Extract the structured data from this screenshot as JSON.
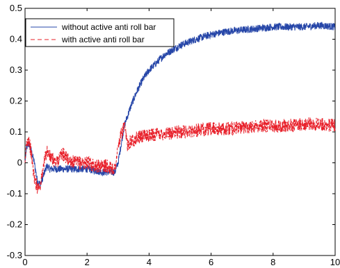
{
  "chart_data": {
    "type": "line",
    "title": "",
    "xlabel": "",
    "ylabel": "",
    "xlim": [
      0,
      10
    ],
    "ylim": [
      -0.3,
      0.5
    ],
    "xticks": [
      0,
      2,
      4,
      6,
      8,
      10
    ],
    "yticks": [
      -0.3,
      -0.2,
      -0.1,
      0,
      0.1,
      0.2,
      0.3,
      0.4,
      0.5
    ],
    "grid": false,
    "legend_position": "top-left",
    "series": [
      {
        "name": "without active anti roll bar",
        "color": "#2646a8",
        "line_style": "solid",
        "x": [
          0,
          0.05,
          0.12,
          0.2,
          0.3,
          0.4,
          0.5,
          0.6,
          0.7,
          0.8,
          1.0,
          1.2,
          1.5,
          2.0,
          2.5,
          2.9,
          3.0,
          3.1,
          3.2,
          3.4,
          3.6,
          3.8,
          4.0,
          4.5,
          5.0,
          5.5,
          6.0,
          6.5,
          7.0,
          7.5,
          8.0,
          8.5,
          9.0,
          9.5,
          10.0
        ],
        "values": [
          0.0,
          0.05,
          0.06,
          0.04,
          0.0,
          -0.06,
          -0.07,
          -0.04,
          -0.01,
          -0.02,
          -0.02,
          -0.02,
          -0.02,
          -0.02,
          -0.03,
          -0.03,
          0.0,
          0.06,
          0.12,
          0.18,
          0.23,
          0.27,
          0.3,
          0.35,
          0.38,
          0.4,
          0.415,
          0.425,
          0.43,
          0.435,
          0.44,
          0.44,
          0.44,
          0.445,
          0.44
        ],
        "noise": 0.012
      },
      {
        "name": "with active anti roll bar",
        "color": "#e8202a",
        "line_style": "dashed",
        "x": [
          0,
          0.05,
          0.12,
          0.2,
          0.3,
          0.4,
          0.5,
          0.6,
          0.7,
          0.8,
          1.0,
          1.2,
          1.4,
          1.6,
          1.8,
          2.0,
          2.3,
          2.6,
          2.9,
          3.0,
          3.1,
          3.2,
          3.3,
          3.4,
          3.6,
          4.0,
          4.5,
          5.0,
          5.5,
          6.0,
          6.5,
          7.0,
          7.5,
          8.0,
          8.5,
          9.0,
          9.5,
          10.0
        ],
        "values": [
          0.0,
          0.06,
          0.08,
          0.03,
          -0.05,
          -0.08,
          -0.07,
          -0.01,
          0.04,
          0.02,
          0.0,
          0.03,
          0.01,
          0.0,
          0.0,
          0.0,
          -0.01,
          -0.01,
          -0.02,
          0.05,
          0.09,
          0.12,
          0.06,
          0.07,
          0.08,
          0.09,
          0.095,
          0.1,
          0.105,
          0.11,
          0.11,
          0.115,
          0.12,
          0.12,
          0.12,
          0.125,
          0.125,
          0.12
        ],
        "noise": 0.022
      }
    ]
  }
}
